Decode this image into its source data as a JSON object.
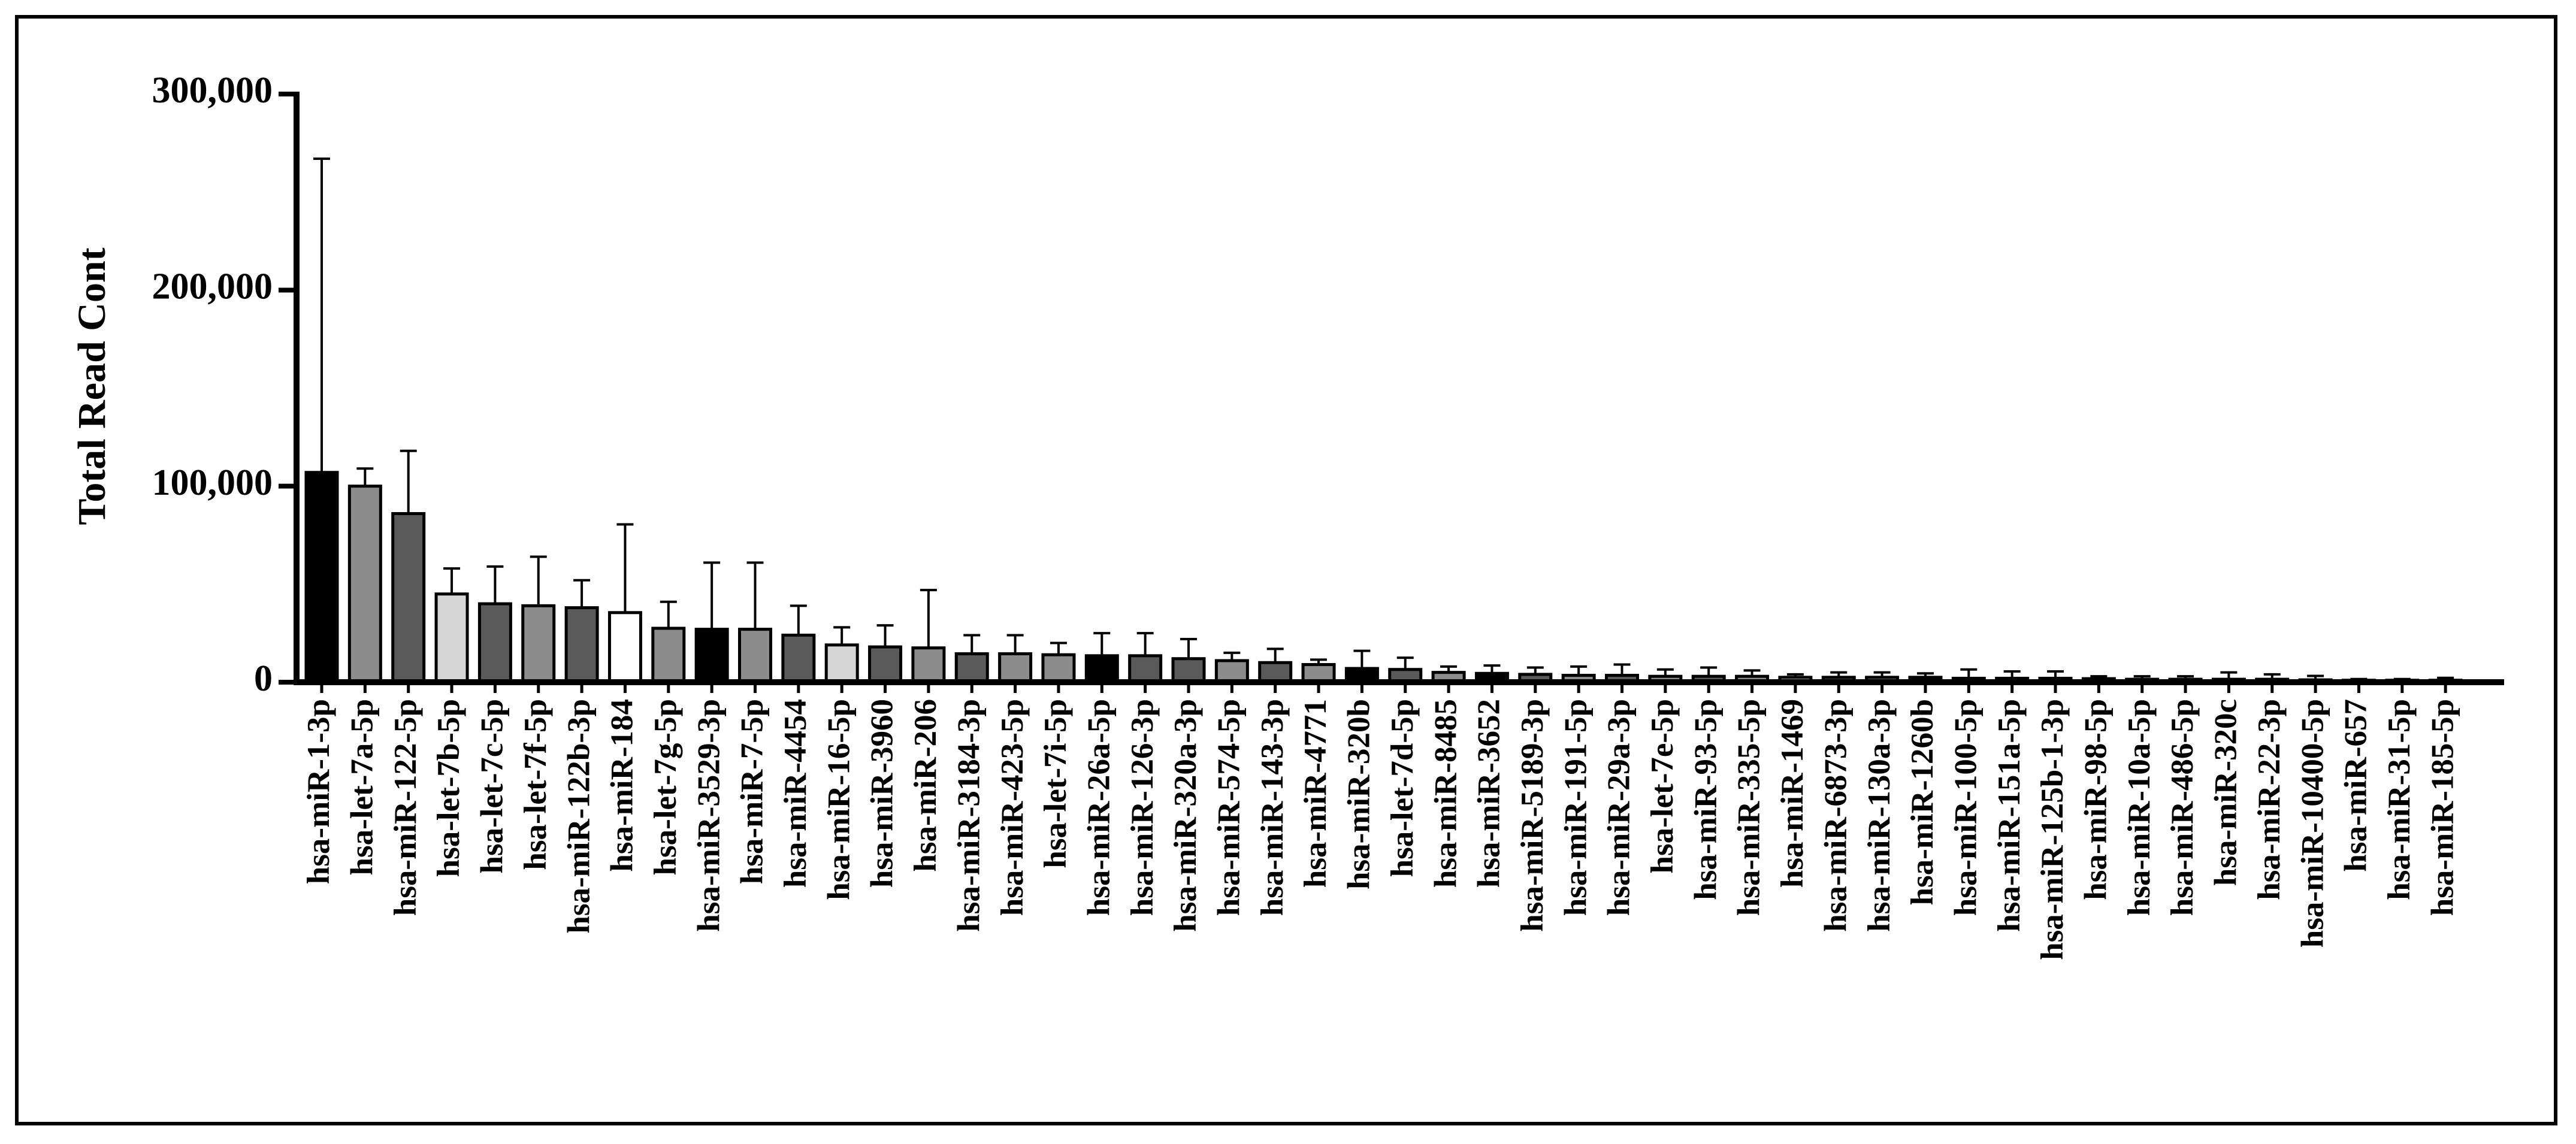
{
  "chart_data": {
    "type": "bar",
    "title": "",
    "xlabel": "",
    "ylabel": "Total Read Cont",
    "ylim": [
      0,
      300000
    ],
    "yticks": [
      0,
      100000,
      200000,
      300000
    ],
    "ytick_labels": [
      "0",
      "100,000",
      "200,000",
      "300,000"
    ],
    "grid": false,
    "legend": "none",
    "error_bars": "upper",
    "categories": [
      "hsa-miR-1-3p",
      "hsa-let-7a-5p",
      "hsa-miR-122-5p",
      "hsa-let-7b-5p",
      "hsa-let-7c-5p",
      "hsa-let-7f-5p",
      "hsa-miR-122b-3p",
      "hsa-miR-184",
      "hsa-let-7g-5p",
      "hsa-miR-3529-3p",
      "hsa-miR-7-5p",
      "hsa-miR-4454",
      "hsa-miR-16-5p",
      "hsa-miR-3960",
      "hsa-miR-206",
      "hsa-miR-3184-3p",
      "hsa-miR-423-5p",
      "hsa-let-7i-5p",
      "hsa-miR-26a-5p",
      "hsa-miR-126-3p",
      "hsa-miR-320a-3p",
      "hsa-miR-574-5p",
      "hsa-miR-143-3p",
      "hsa-miR-4771",
      "hsa-miR-320b",
      "hsa-let-7d-5p",
      "hsa-miR-8485",
      "hsa-miR-3652",
      "hsa-miR-5189-3p",
      "hsa-miR-191-5p",
      "hsa-miR-29a-3p",
      "hsa-let-7e-5p",
      "hsa-miR-93-5p",
      "hsa-miR-335-5p",
      "hsa-miR-1469",
      "hsa-miR-6873-3p",
      "hsa-miR-130a-3p",
      "hsa-miR-1260b",
      "hsa-miR-100-5p",
      "hsa-miR-151a-5p",
      "hsa-miR-125b-1-3p",
      "hsa-miR-98-5p",
      "hsa-miR-10a-5p",
      "hsa-miR-486-5p",
      "hsa-miR-320c",
      "hsa-miR-22-3p",
      "hsa-miR-10400-5p",
      "hsa-miR-657",
      "hsa-miR-31-5p",
      "hsa-miR-185-5p"
    ],
    "values": [
      107000,
      100000,
      86000,
      45000,
      40000,
      39000,
      38000,
      35500,
      27500,
      27000,
      27000,
      24000,
      19000,
      18000,
      17500,
      14500,
      14500,
      14000,
      13500,
      13500,
      12000,
      11000,
      10000,
      9000,
      7000,
      6500,
      5000,
      4500,
      4000,
      3500,
      3500,
      3000,
      3000,
      3000,
      2500,
      2500,
      2500,
      2500,
      2000,
      2000,
      2000,
      1800,
      1500,
      1500,
      1500,
      1500,
      1200,
      1000,
      1000,
      1000
    ],
    "errors": [
      160000,
      9000,
      32000,
      13000,
      19000,
      25000,
      14000,
      45000,
      13500,
      34000,
      34000,
      15000,
      9000,
      11000,
      29500,
      9500,
      9500,
      6000,
      11500,
      11500,
      10000,
      4000,
      7000,
      2500,
      9000,
      6000,
      3000,
      4000,
      3500,
      4500,
      5500,
      3500,
      4500,
      3000,
      1500,
      2500,
      2500,
      2000,
      4500,
      3500,
      3500,
      1200,
      1500,
      1500,
      3500,
      2500,
      2000,
      600,
      600,
      1200
    ],
    "colors": {
      "black": "#000000",
      "gray": "#8c8c8c",
      "dark": "#5a5a5a",
      "light": "#d6d6d6",
      "white": "#ffffff"
    },
    "bar_colors": [
      "black",
      "gray",
      "dark",
      "light",
      "dark",
      "gray",
      "dark",
      "white",
      "gray",
      "black",
      "gray",
      "dark",
      "light",
      "dark",
      "gray",
      "dark",
      "gray",
      "gray",
      "black",
      "dark",
      "dark",
      "gray",
      "dark",
      "gray",
      "black",
      "dark",
      "gray",
      "black",
      "dark",
      "gray",
      "dark",
      "gray",
      "dark",
      "gray",
      "light",
      "dark",
      "gray",
      "black",
      "gray",
      "dark",
      "light",
      "black",
      "gray",
      "dark",
      "light",
      "dark",
      "black",
      "gray",
      "dark",
      "gray"
    ]
  }
}
